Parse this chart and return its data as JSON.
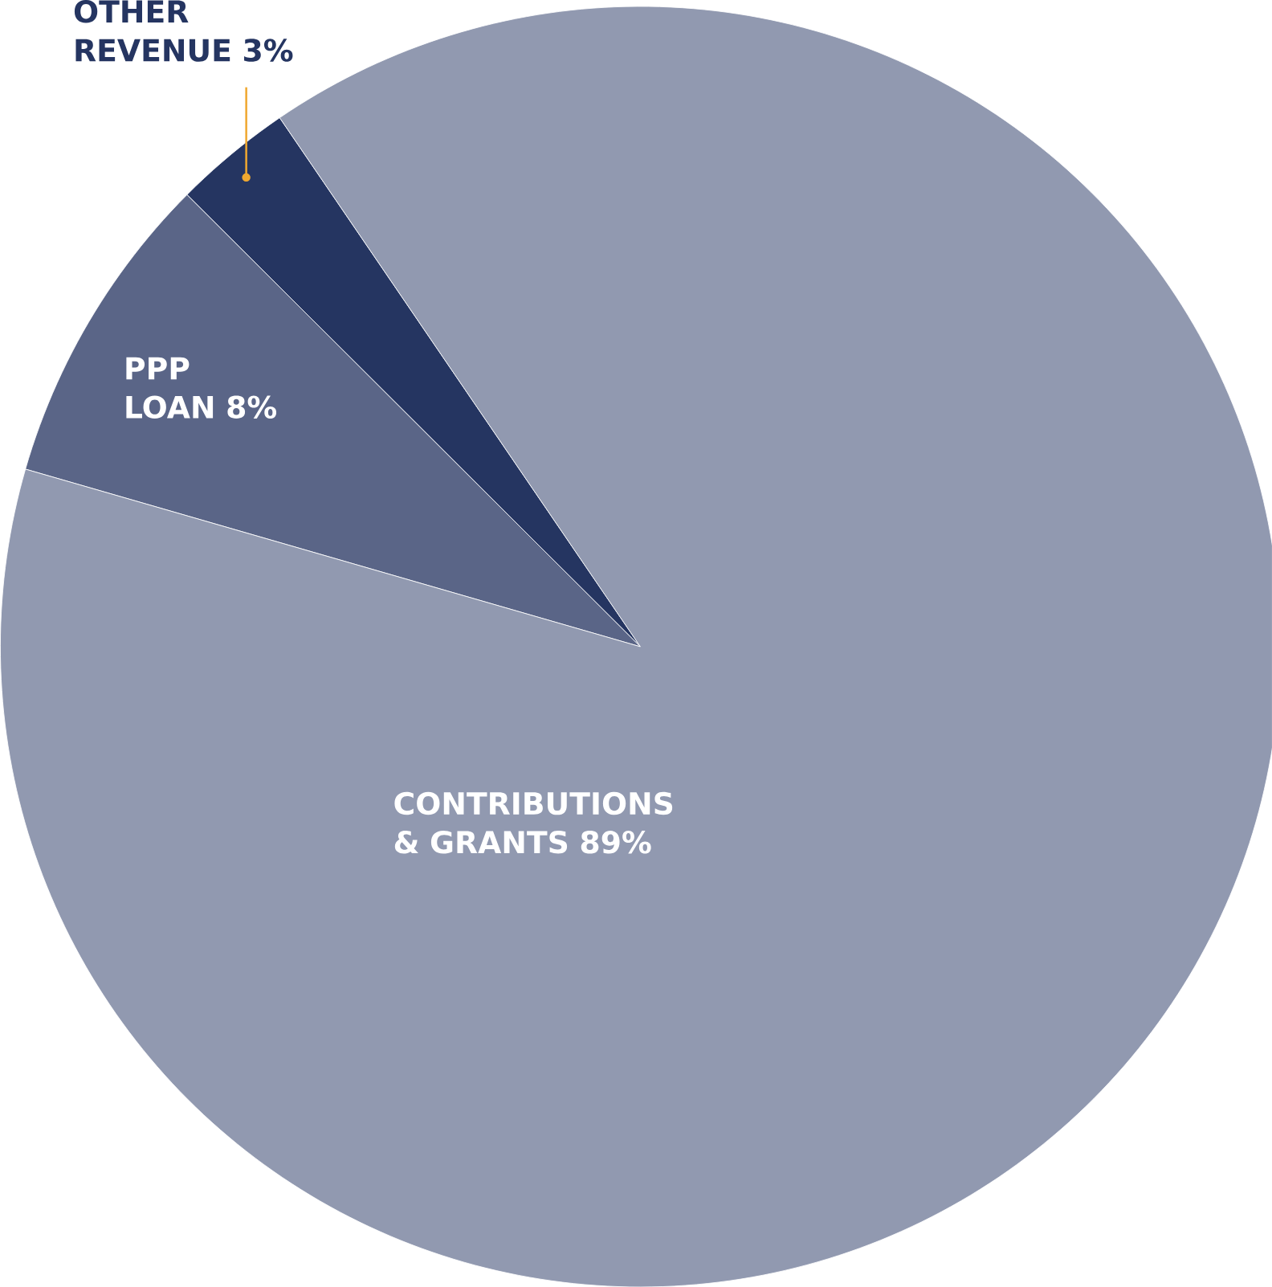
{
  "chart_data": {
    "type": "pie",
    "categories": [
      "OTHER REVENUE",
      "PPP LOAN",
      "CONTRIBUTIONS & GRANTS"
    ],
    "values": [
      3,
      8,
      89
    ],
    "value_labels": [
      "3%",
      "8%",
      "89%"
    ],
    "colors": [
      "#253561",
      "#5a6587",
      "#9199b0"
    ]
  }
}
